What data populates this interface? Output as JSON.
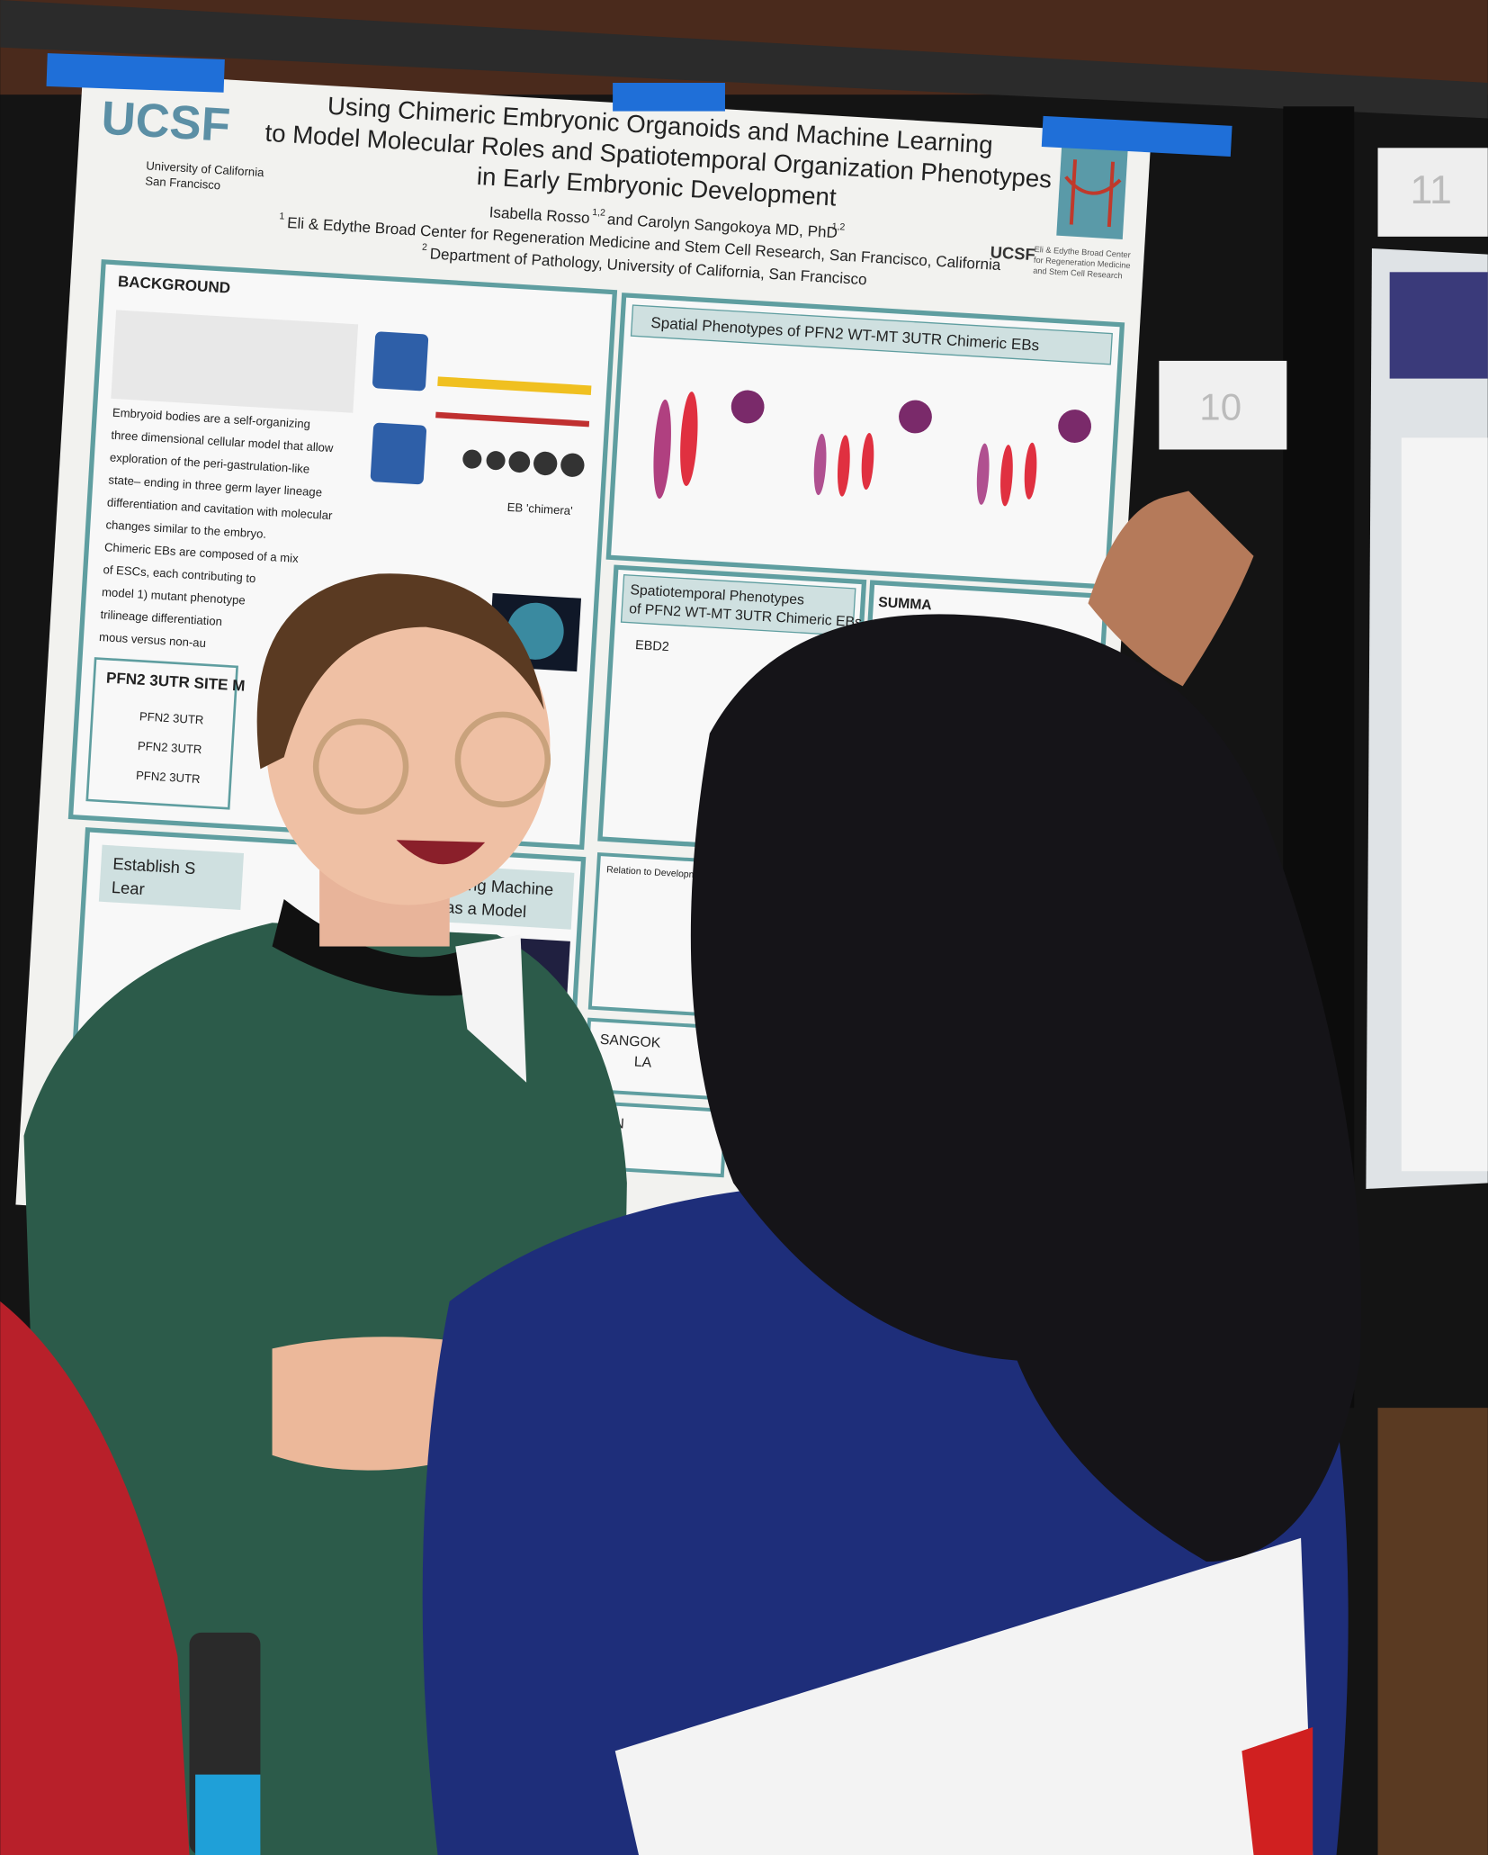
{
  "poster": {
    "logo": "UCSF",
    "institution": [
      "University of California",
      "San Francisco"
    ],
    "title": [
      "Using Chimeric Embryonic Organoids and Machine Learning",
      "to Model Molecular Roles and Spatiotemporal Organization Phenotypes",
      "in Early Embryonic Development"
    ],
    "authors": [
      "Isabella Rosso",
      "1,2",
      "and Carolyn Sangokoya MD, PhD",
      "1,2"
    ],
    "affiliations": [
      {
        "mark": "1",
        "text": "Eli & Edythe Broad Center for Regeneration Medicine and Stem Cell Research, San Francisco, California"
      },
      {
        "mark": "2",
        "text": "Department of Pathology, University of California, San Francisco"
      }
    ],
    "right_logo": "UCSF",
    "right_logo_text": [
      "Eli & Edythe Broad Center",
      "for Regeneration Medicine",
      "and Stem Cell Research"
    ],
    "background": {
      "heading": "BACKGROUND",
      "lines": [
        "Embryoid bodies are a self-organizing",
        "three dimensional cellular model that allow",
        "exploration of the peri-gastrulation-like",
        "state– ending in three germ layer lineage",
        "differentiation and cavitation with molecular",
        "changes similar to the embryo.",
        "Chimeric EBs are composed of a mix",
        "of ESCs, each contributing to",
        "model 1) mutant phenotype",
        "trilineage differentiation",
        "mous versus non-au"
      ],
      "chimera_label": "EB 'chimera'"
    },
    "site_panel": {
      "heading": "PFN2 3UTR SITE M",
      "labels": [
        "PFN2 3UTR",
        "PFN2 3UTR",
        "PFN2 3UTR"
      ]
    },
    "spatial": "Spatial Phenotypes of PFN2 WT-MT 3UTR Chimeric EBs",
    "spatiotemporal": [
      "Spatiotemporal Phenotypes",
      "of PFN2 WT-MT 3UTR Chimeric EBs"
    ],
    "ebd": "EBD2",
    "summary": "SUMMA",
    "establish": [
      "Establish S",
      "Lear"
    ],
    "machine": [
      "using Machine",
      "as a Model"
    ],
    "relation": "Relation to Development",
    "sangok": [
      "SANGOK",
      "LA"
    ],
    "fun": "FUN"
  },
  "booth_numbers": [
    "10",
    "11"
  ]
}
